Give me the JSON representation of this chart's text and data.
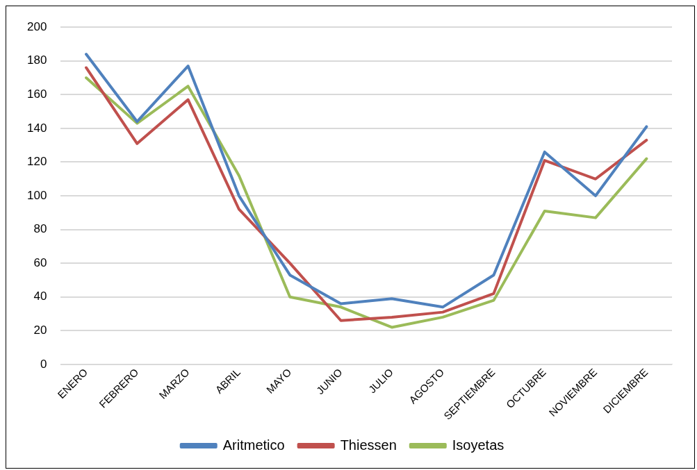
{
  "chart_data": {
    "type": "line",
    "categories": [
      "ENERO",
      "FEBRERO",
      "MARZO",
      "ABRIL",
      "MAYO",
      "JUNIO",
      "JULIO",
      "AGOSTO",
      "SEPTIEMBRE",
      "OCTUBRE",
      "NOVIEMBRE",
      "DICIEMBRE"
    ],
    "series": [
      {
        "name": "Aritmetico",
        "color": "#4f81bd",
        "values": [
          184,
          144,
          177,
          100,
          53,
          36,
          39,
          34,
          53,
          126,
          100,
          141
        ]
      },
      {
        "name": "Thiessen",
        "color": "#c0504d",
        "values": [
          176,
          131,
          157,
          92,
          60,
          26,
          28,
          31,
          42,
          121,
          110,
          133
        ]
      },
      {
        "name": "Isoyetas",
        "color": "#9bbb59",
        "values": [
          170,
          143,
          165,
          112,
          40,
          34,
          22,
          28,
          38,
          91,
          87,
          122
        ]
      }
    ],
    "ylim": [
      0,
      200
    ],
    "yticks": [
      0,
      20,
      40,
      60,
      80,
      100,
      120,
      140,
      160,
      180,
      200
    ],
    "grid": "y",
    "legend": "bottom",
    "marker": "none",
    "line_style": "solid"
  }
}
